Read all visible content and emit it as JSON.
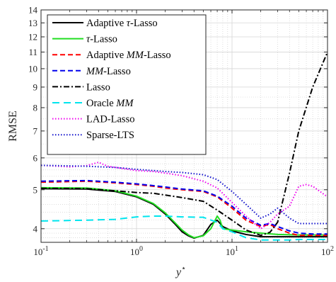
{
  "chart_data": {
    "type": "line",
    "xscale": "log",
    "yscale": "log",
    "xlim": [
      0.1,
      100
    ],
    "ylim": [
      3.7,
      14
    ],
    "grid": true,
    "minor_grid": true,
    "xlabel": "y",
    "xlabel_sup": "⋆",
    "ylabel": "RMSE",
    "legend_position": "top-left",
    "x_ticks": [
      {
        "value": 0.1,
        "base": "10",
        "exp": "-1"
      },
      {
        "value": 1,
        "base": "10",
        "exp": "0"
      },
      {
        "value": 10,
        "base": "10",
        "exp": "1"
      },
      {
        "value": 100,
        "base": "10",
        "exp": "2"
      }
    ],
    "y_ticks": [
      {
        "value": 4,
        "label": "4"
      },
      {
        "value": 5,
        "label": "5"
      },
      {
        "value": 6,
        "label": "6"
      },
      {
        "value": 7,
        "label": "7"
      },
      {
        "value": 8,
        "label": "8"
      },
      {
        "value": 9,
        "label": "9"
      },
      {
        "value": 10,
        "label": "10"
      },
      {
        "value": 11,
        "label": "11"
      },
      {
        "value": 12,
        "label": "12"
      },
      {
        "value": 13,
        "label": "13"
      },
      {
        "value": 14,
        "label": "14"
      }
    ],
    "series": [
      {
        "name": "Adaptive τ-Lasso",
        "color": "#000000",
        "dash": "solid",
        "width": 2,
        "x": [
          0.1,
          0.3,
          0.6,
          1,
          1.5,
          2,
          2.5,
          3,
          3.5,
          4,
          5,
          6,
          7,
          8,
          10,
          14,
          20,
          30,
          50,
          100
        ],
        "y": [
          5.03,
          5.02,
          4.95,
          4.8,
          4.6,
          4.35,
          4.12,
          3.93,
          3.84,
          3.79,
          3.85,
          4.1,
          4.2,
          4.05,
          3.95,
          3.87,
          3.82,
          3.82,
          3.82,
          3.82
        ]
      },
      {
        "name": "τ-Lasso",
        "color": "#22dd22",
        "dash": "solid",
        "width": 2,
        "x": [
          0.1,
          0.3,
          0.6,
          1,
          1.5,
          2,
          2.5,
          3,
          3.5,
          4,
          5,
          6,
          7,
          7.5,
          8,
          10,
          14,
          20,
          30,
          50,
          100
        ],
        "y": [
          5.06,
          5.05,
          4.97,
          4.82,
          4.62,
          4.38,
          4.15,
          3.97,
          3.86,
          3.8,
          3.84,
          4.0,
          4.3,
          4.2,
          4.0,
          3.97,
          3.93,
          3.9,
          3.87,
          3.86,
          3.86
        ]
      },
      {
        "name": "Adaptive MM-Lasso",
        "color": "#ff0000",
        "dash": "dashed",
        "width": 2,
        "x": [
          0.1,
          0.3,
          0.6,
          1,
          1.5,
          2,
          3,
          5,
          7,
          10,
          14,
          20,
          25,
          30,
          40,
          50,
          70,
          100
        ],
        "y": [
          5.22,
          5.25,
          5.2,
          5.15,
          5.1,
          5.05,
          5.0,
          4.95,
          4.8,
          4.5,
          4.2,
          4.05,
          4.1,
          4.0,
          3.9,
          3.85,
          3.85,
          3.85
        ]
      },
      {
        "name": "MM-Lasso",
        "color": "#0000ee",
        "dash": "dashed",
        "width": 2,
        "x": [
          0.1,
          0.3,
          0.6,
          1,
          1.5,
          2,
          3,
          5,
          7,
          10,
          14,
          20,
          25,
          30,
          40,
          50,
          70,
          100
        ],
        "y": [
          5.25,
          5.27,
          5.22,
          5.17,
          5.12,
          5.08,
          5.02,
          4.97,
          4.82,
          4.55,
          4.25,
          4.08,
          4.12,
          4.05,
          3.95,
          3.9,
          3.88,
          3.88
        ]
      },
      {
        "name": "Lasso",
        "color": "#000000",
        "dash": "dashdot",
        "width": 2,
        "x": [
          0.1,
          0.3,
          0.6,
          1,
          1.5,
          2,
          3,
          5,
          7,
          10,
          14,
          20,
          25,
          30,
          40,
          50,
          70,
          100
        ],
        "y": [
          5.04,
          5.03,
          4.97,
          4.92,
          4.9,
          4.85,
          4.78,
          4.68,
          4.45,
          4.2,
          3.97,
          3.85,
          3.92,
          4.15,
          5.5,
          7.0,
          9.0,
          11.0
        ]
      },
      {
        "name": "Oracle MM",
        "color": "#00e5ee",
        "dash": "longdash",
        "width": 2,
        "x": [
          0.1,
          0.3,
          0.6,
          1,
          1.5,
          2,
          3,
          5,
          7,
          8,
          10,
          14,
          20,
          25,
          30,
          40,
          50,
          70,
          100
        ],
        "y": [
          4.18,
          4.2,
          4.22,
          4.28,
          4.3,
          4.3,
          4.28,
          4.27,
          4.15,
          4.0,
          3.93,
          3.8,
          3.75,
          3.75,
          3.75,
          3.75,
          3.76,
          3.76,
          3.76
        ]
      },
      {
        "name": "LAD-Lasso",
        "color": "#ee00ee",
        "dash": "dotted",
        "width": 2,
        "x": [
          0.1,
          0.2,
          0.3,
          0.4,
          0.5,
          0.7,
          1,
          1.5,
          2,
          3,
          5,
          7,
          10,
          14,
          20,
          25,
          30,
          40,
          50,
          60,
          70,
          100
        ],
        "y": [
          5.75,
          5.7,
          5.74,
          5.85,
          5.72,
          5.65,
          5.58,
          5.55,
          5.5,
          5.42,
          5.25,
          5.05,
          4.65,
          4.3,
          4.0,
          4.15,
          4.35,
          4.55,
          5.1,
          5.15,
          5.1,
          4.8
        ]
      },
      {
        "name": "Sparse-LTS",
        "color": "#1010cc",
        "dash": "dotted",
        "width": 2,
        "x": [
          0.1,
          0.3,
          0.6,
          1,
          1.5,
          2,
          3,
          5,
          7,
          10,
          14,
          20,
          25,
          30,
          40,
          50,
          70,
          100
        ],
        "y": [
          5.75,
          5.72,
          5.68,
          5.62,
          5.58,
          5.55,
          5.52,
          5.45,
          5.3,
          4.95,
          4.6,
          4.25,
          4.35,
          4.5,
          4.25,
          4.12,
          4.12,
          4.12
        ]
      }
    ],
    "legend": [
      {
        "label": "Adaptive ",
        "italic": "τ",
        "suffix": "-Lasso"
      },
      {
        "label": "",
        "italic": "τ",
        "suffix": "-Lasso"
      },
      {
        "label": "Adaptive ",
        "italic": "MM",
        "suffix": "-Lasso"
      },
      {
        "label": "",
        "italic": "MM",
        "suffix": "-Lasso"
      },
      {
        "label": "Lasso",
        "italic": "",
        "suffix": ""
      },
      {
        "label": "Oracle ",
        "italic": "MM",
        "suffix": ""
      },
      {
        "label": "LAD-Lasso",
        "italic": "",
        "suffix": ""
      },
      {
        "label": "Sparse-LTS",
        "italic": "",
        "suffix": ""
      }
    ]
  }
}
